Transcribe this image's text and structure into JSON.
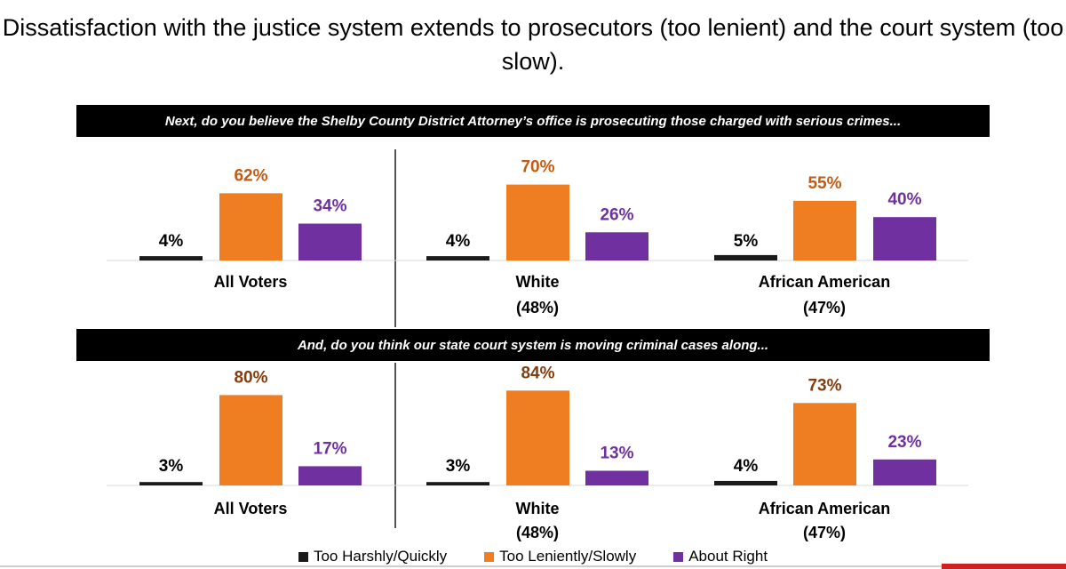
{
  "title": "Dissatisfaction with the justice system extends to prosecutors (too lenient) and the court system (too slow).",
  "colors": {
    "harsh": "#1a1a1a",
    "lenient": "#ef7d22",
    "right": "#7030a0",
    "label_orange": "#c55a11",
    "label_brown": "#843c0c",
    "label_purple": "#7030a0",
    "label_black": "#000000"
  },
  "chart_data": [
    {
      "type": "bar",
      "question": "Next, do you believe the Shelby County District Attorney’s office is prosecuting those charged with serious crimes...",
      "groups": [
        {
          "name": "All Voters",
          "sub": ""
        },
        {
          "name": "White",
          "sub": "(48%)"
        },
        {
          "name": "African American",
          "sub": "(47%)"
        }
      ],
      "series": [
        {
          "name": "Too Harshly/Quickly",
          "values": [
            4,
            4,
            5
          ],
          "labels": [
            "4%",
            "4%",
            "5%"
          ]
        },
        {
          "name": "Too Leniently/Slowly",
          "values": [
            62,
            70,
            55
          ],
          "labels": [
            "62%",
            "70%",
            "55%"
          ]
        },
        {
          "name": "About Right",
          "values": [
            34,
            26,
            40
          ],
          "labels": [
            "34%",
            "26%",
            "40%"
          ]
        }
      ],
      "ylim": [
        0,
        100
      ]
    },
    {
      "type": "bar",
      "question": "And, do you think our state court system is moving criminal cases along...",
      "groups": [
        {
          "name": "All Voters",
          "sub": ""
        },
        {
          "name": "White",
          "sub": "(48%)"
        },
        {
          "name": "African American",
          "sub": "(47%)"
        }
      ],
      "series": [
        {
          "name": "Too Harshly/Quickly",
          "values": [
            3,
            3,
            4
          ],
          "labels": [
            "3%",
            "3%",
            "4%"
          ]
        },
        {
          "name": "Too Leniently/Slowly",
          "values": [
            80,
            84,
            73
          ],
          "labels": [
            "80%",
            "84%",
            "73%"
          ]
        },
        {
          "name": "About Right",
          "values": [
            17,
            13,
            23
          ],
          "labels": [
            "17%",
            "13%",
            "23%"
          ]
        }
      ],
      "ylim": [
        0,
        100
      ]
    }
  ],
  "legend": [
    {
      "label": "Too Harshly/Quickly",
      "color": "#1a1a1a"
    },
    {
      "label": "Too Leniently/Slowly",
      "color": "#ef7d22"
    },
    {
      "label": "About Right",
      "color": "#7030a0"
    }
  ]
}
